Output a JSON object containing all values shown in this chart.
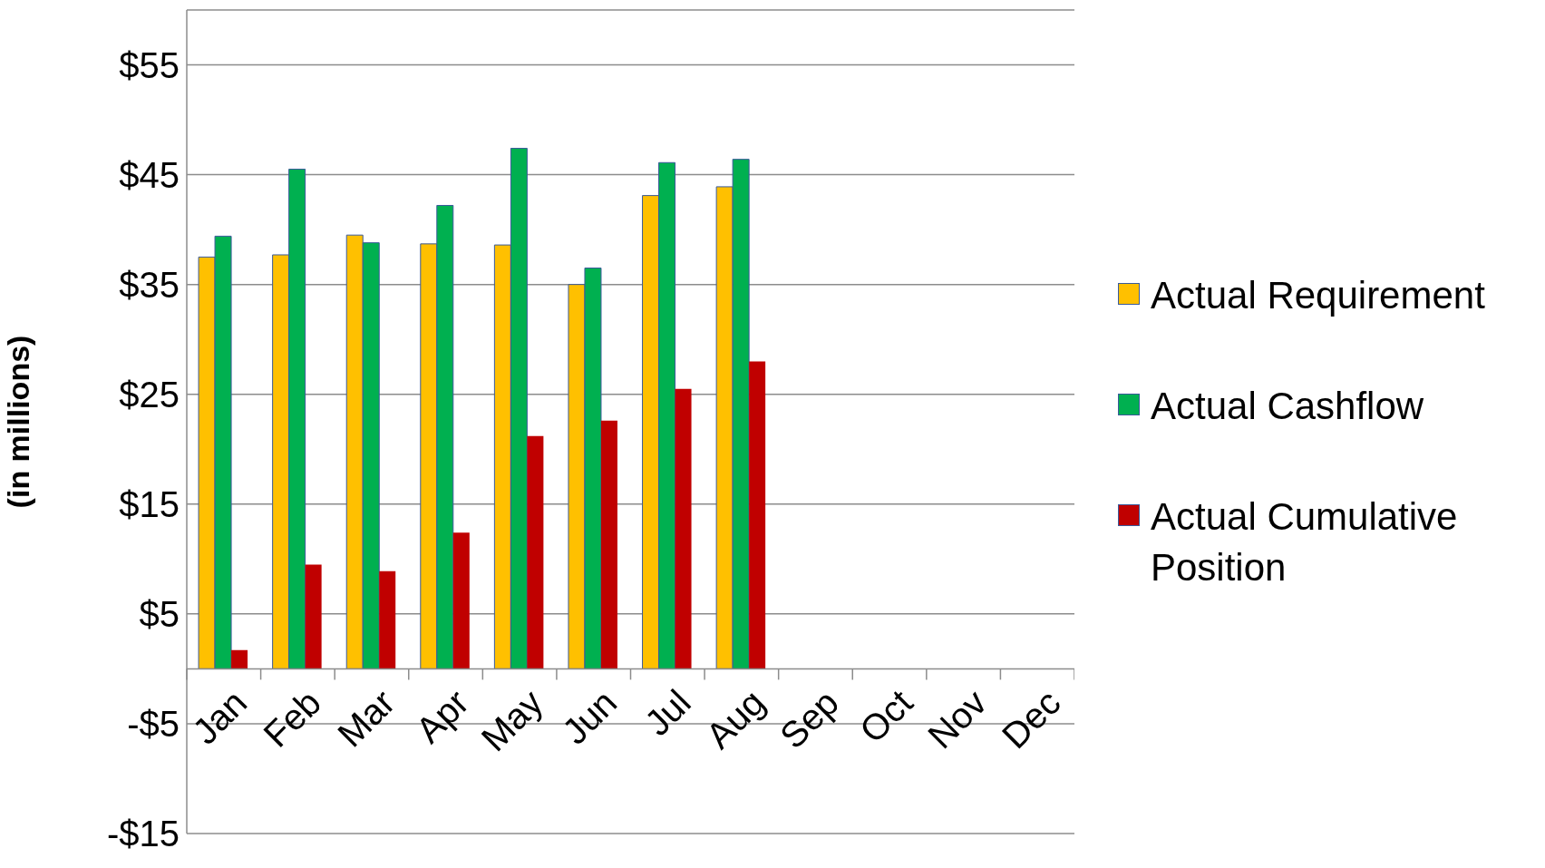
{
  "chart_data": {
    "type": "bar",
    "ylabel": "(in millions)",
    "categories": [
      "Jan",
      "Feb",
      "Mar",
      "Apr",
      "May",
      "Jun",
      "Jul",
      "Aug",
      "Sep",
      "Oct",
      "Nov",
      "Dec"
    ],
    "series": [
      {
        "name": "Actual Requirement",
        "color": "#ffc000",
        "values": [
          37.5,
          37.7,
          39.5,
          38.7,
          38.6,
          35.0,
          43.1,
          43.9,
          null,
          null,
          null,
          null
        ]
      },
      {
        "name": "Actual Cashflow",
        "color": "#00b050",
        "values": [
          39.4,
          45.5,
          38.8,
          42.2,
          47.4,
          36.5,
          46.1,
          46.4,
          null,
          null,
          null,
          null
        ]
      },
      {
        "name": "Actual Cumulative Position",
        "color": "#c00000",
        "values": [
          1.7,
          9.5,
          8.9,
          12.4,
          21.2,
          22.6,
          25.5,
          28.0,
          null,
          null,
          null,
          null
        ]
      }
    ],
    "ylim": [
      -15,
      60
    ],
    "yticks": [
      {
        "value": -15,
        "label": "-$15"
      },
      {
        "value": -5,
        "label": "-$5"
      },
      {
        "value": 5,
        "label": "$5"
      },
      {
        "value": 15,
        "label": "$15"
      },
      {
        "value": 25,
        "label": "$25"
      },
      {
        "value": 35,
        "label": "$35"
      },
      {
        "value": 45,
        "label": "$45"
      },
      {
        "value": 55,
        "label": "$55"
      }
    ],
    "grid": "y",
    "legend": "right"
  }
}
